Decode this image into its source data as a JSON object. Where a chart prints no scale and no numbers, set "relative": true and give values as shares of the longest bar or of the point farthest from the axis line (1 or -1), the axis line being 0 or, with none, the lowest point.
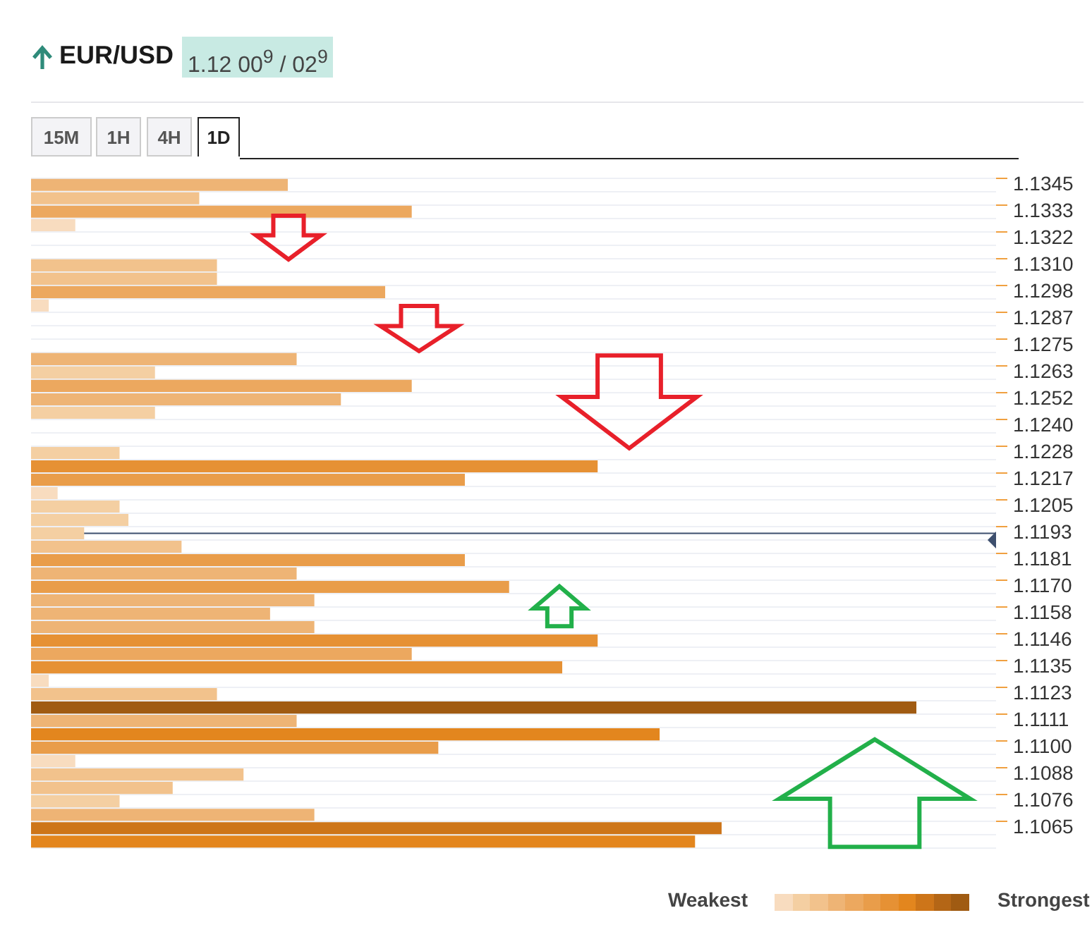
{
  "chart_data": {
    "type": "bar",
    "orientation": "horizontal",
    "relative": true,
    "title": "EUR/USD",
    "subtitle": "1.12 00$^{9}$ / 02$^{9}$",
    "categories": [
      "1.1345",
      null,
      "1.1333",
      null,
      "1.1322",
      null,
      "1.1310",
      null,
      "1.1298",
      null,
      "1.1287",
      null,
      "1.1275",
      null,
      "1.1263",
      null,
      "1.1252",
      null,
      "1.1240",
      null,
      "1.1228",
      null,
      "1.1217",
      null,
      "1.1205",
      null,
      "1.1193",
      null,
      "1.1181",
      null,
      "1.1170",
      null,
      "1.1158",
      null,
      "1.1146",
      null,
      "1.1135",
      null,
      "1.1123",
      null,
      "1.1111",
      null,
      "1.1100",
      null,
      "1.1088",
      null,
      "1.1076",
      null,
      "1.1065",
      null
    ],
    "values": [
      0.29,
      0.19,
      0.43,
      0.05,
      null,
      null,
      0.21,
      0.21,
      0.4,
      0.02,
      null,
      null,
      null,
      0.3,
      0.14,
      0.43,
      0.35,
      0.14,
      null,
      null,
      0.1,
      0.64,
      0.49,
      0.03,
      0.1,
      0.11,
      0.06,
      0.17,
      0.49,
      0.3,
      0.54,
      0.32,
      0.27,
      0.32,
      0.64,
      0.43,
      0.6,
      0.02,
      0.21,
      1,
      0.3,
      0.71,
      0.46,
      0.05,
      0.24,
      0.16,
      0.1,
      0.32,
      0.78,
      0.75
    ],
    "colors": [
      "#eeb475",
      "#f2c28c",
      "#eca85f",
      "#f8dcbf",
      null,
      null,
      "#f2c28c",
      "#f2c28c",
      "#eca85f",
      "#f8dcbf",
      null,
      null,
      null,
      "#eeb475",
      "#f4cfa2",
      "#eca85f",
      "#eeb475",
      "#f4cfa2",
      null,
      null,
      "#f4cfa2",
      "#e69134",
      "#e99d4a",
      "#f8dcbf",
      "#f4cfa2",
      "#f4cfa2",
      "#f4cfa2",
      "#f2c28c",
      "#e99d4a",
      "#eeb475",
      "#e99d4a",
      "#eeb475",
      "#eeb475",
      "#eeb475",
      "#e69134",
      "#eca85f",
      "#e69134",
      "#f8dcbf",
      "#f2c28c",
      "#a05b12",
      "#eeb475",
      "#e3861e",
      "#e99d4a",
      "#f8dcbf",
      "#f2c28c",
      "#f2c28c",
      "#f4cfa2",
      "#eeb475",
      "#cd7519",
      "#e3861e"
    ],
    "ref_lines": [
      {
        "axis": "y",
        "value": "1.1193",
        "color": "#3d4f6e"
      }
    ],
    "grid": "y",
    "tick_labels": "y",
    "annotations": [
      "15M",
      "1H",
      "4H",
      "1D",
      "Weakest",
      "Strongest"
    ]
  }
}
